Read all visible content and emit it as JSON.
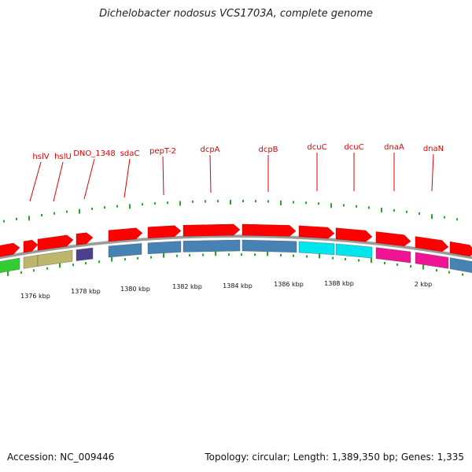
{
  "title": "Dichelobacter nodosus VCS1703A, complete genome",
  "footer": {
    "accession": "Accession: NC_009446",
    "summary": "Topology: circular; Length: 1,389,350 bp; Genes: 1,335"
  },
  "gene_labels": [
    "hslV",
    "hslU",
    "DNO_1348",
    "sdaC",
    "pepT-2",
    "dcpA",
    "dcpB",
    "dcuC",
    "dcuC",
    "dnaA",
    "dnaN"
  ],
  "axis_labels": [
    "1376 kbp",
    "1378 kbp",
    "1380 kbp",
    "1382 kbp",
    "1384 kbp",
    "1386 kbp",
    "1388 kbp",
    "2 kbp"
  ],
  "colors": {
    "cds": "#ff0000",
    "label": "#e00000",
    "tick": "#22aa22",
    "backbone": "#9a9a9a",
    "green": "#33cc33",
    "olive": "#bdb76b",
    "purple": "#4b3f8f",
    "steelblue": "#4682b4",
    "cyan": "#00e5ee",
    "magenta": "#ee1493"
  },
  "feature_colors": [
    "green",
    "olive",
    "olive",
    "purple",
    "steelblue",
    "steelblue",
    "steelblue",
    "steelblue",
    "cyan",
    "cyan",
    "magenta",
    "magenta",
    "steelblue"
  ]
}
